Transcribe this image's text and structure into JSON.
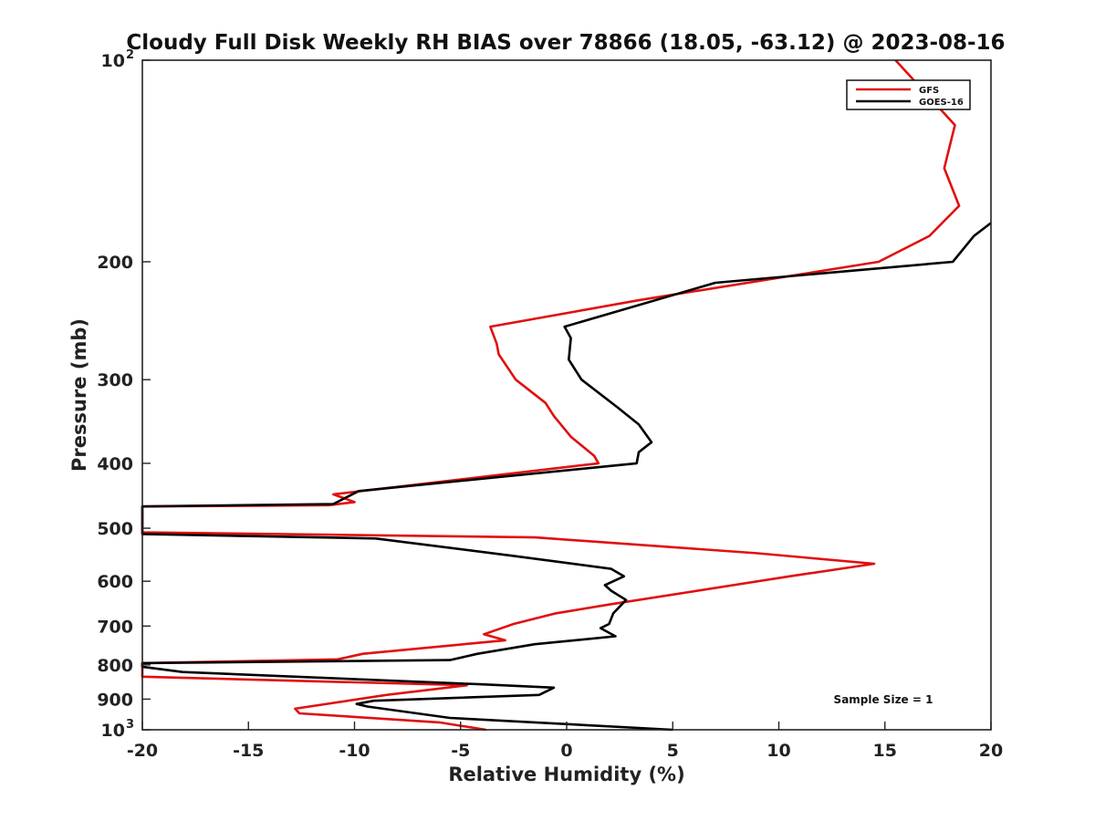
{
  "chart_data": {
    "type": "line",
    "title": "Cloudy Full Disk Weekly RH BIAS over 78866 (18.05, -63.12) @ 2023-08-16",
    "xlabel": "Relative Humidity (%)",
    "ylabel": "Pressure (mb)",
    "xlim": [
      -20,
      20
    ],
    "ylim": [
      100,
      1000
    ],
    "yscale": "log",
    "y_reversed": true,
    "x_ticks": [
      -20,
      -15,
      -10,
      -5,
      0,
      5,
      10,
      15,
      20
    ],
    "x_tick_labels": [
      "-20",
      "-15",
      "-10",
      "-5",
      "0",
      "5",
      "10",
      "15",
      "20"
    ],
    "y_ticks": [
      {
        "value": 100,
        "label": "10",
        "exp": "2"
      },
      {
        "value": 200,
        "label": "200",
        "exp": ""
      },
      {
        "value": 300,
        "label": "300",
        "exp": ""
      },
      {
        "value": 400,
        "label": "400",
        "exp": ""
      },
      {
        "value": 500,
        "label": "500",
        "exp": ""
      },
      {
        "value": 600,
        "label": "600",
        "exp": ""
      },
      {
        "value": 700,
        "label": "700",
        "exp": ""
      },
      {
        "value": 800,
        "label": "800",
        "exp": ""
      },
      {
        "value": 900,
        "label": "900",
        "exp": ""
      },
      {
        "value": 1000,
        "label": "10",
        "exp": "3"
      }
    ],
    "legend_position": "top-right",
    "series": [
      {
        "name": "GFS",
        "color": "#e01010",
        "points": [
          [
            15.5,
            100
          ],
          [
            18.3,
            125
          ],
          [
            17.8,
            145
          ],
          [
            18.5,
            165
          ],
          [
            17.1,
            183
          ],
          [
            14.7,
            200
          ],
          [
            3.5,
            228
          ],
          [
            -3.6,
            250
          ],
          [
            -3.3,
            265
          ],
          [
            -3.2,
            275
          ],
          [
            -2.4,
            300
          ],
          [
            -1.0,
            325
          ],
          [
            -0.6,
            340
          ],
          [
            0.2,
            365
          ],
          [
            1.3,
            390
          ],
          [
            1.5,
            400
          ],
          [
            -11.0,
            445
          ],
          [
            -10.0,
            457
          ],
          [
            -11.2,
            462
          ],
          [
            -20.0,
            464
          ],
          [
            -20.0,
            507
          ],
          [
            -1.5,
            516
          ],
          [
            9.0,
            545
          ],
          [
            14.5,
            565
          ],
          [
            10.5,
            590
          ],
          [
            2.0,
            650
          ],
          [
            -0.5,
            670
          ],
          [
            -2.5,
            695
          ],
          [
            -3.9,
            720
          ],
          [
            -2.9,
            735
          ],
          [
            -9.6,
            770
          ],
          [
            -10.8,
            785
          ],
          [
            -20.0,
            795
          ],
          [
            -20.0,
            833
          ],
          [
            -4.7,
            858
          ],
          [
            -8.5,
            887
          ],
          [
            -12.8,
            930
          ],
          [
            -12.6,
            945
          ],
          [
            -6.0,
            975
          ],
          [
            -3.8,
            1000
          ]
        ]
      },
      {
        "name": "GOES-16",
        "color": "#000000",
        "points": [
          [
            20.0,
            175
          ],
          [
            19.2,
            183
          ],
          [
            18.2,
            200
          ],
          [
            7.0,
            215
          ],
          [
            -0.1,
            250
          ],
          [
            0.2,
            260
          ],
          [
            0.1,
            280
          ],
          [
            0.7,
            300
          ],
          [
            2.4,
            330
          ],
          [
            3.4,
            350
          ],
          [
            4.0,
            372
          ],
          [
            3.4,
            385
          ],
          [
            3.3,
            400
          ],
          [
            -9.8,
            440
          ],
          [
            -11.0,
            460
          ],
          [
            -20.0,
            464
          ],
          [
            -20.0,
            510
          ],
          [
            -9.0,
            518
          ],
          [
            -2.5,
            550
          ],
          [
            2.1,
            575
          ],
          [
            2.7,
            590
          ],
          [
            1.8,
            608
          ],
          [
            2.1,
            620
          ],
          [
            2.8,
            640
          ],
          [
            2.2,
            670
          ],
          [
            2.0,
            695
          ],
          [
            1.6,
            705
          ],
          [
            2.3,
            725
          ],
          [
            -1.5,
            745
          ],
          [
            -4.2,
            770
          ],
          [
            -5.5,
            787
          ],
          [
            -20.0,
            795
          ],
          [
            -20.0,
            805
          ],
          [
            -18.1,
            820
          ],
          [
            -4.1,
            855
          ],
          [
            -0.6,
            865
          ],
          [
            -1.3,
            887
          ],
          [
            -9.1,
            905
          ],
          [
            -9.9,
            915
          ],
          [
            -9.4,
            923
          ],
          [
            -5.5,
            960
          ],
          [
            5.0,
            1000
          ]
        ]
      }
    ],
    "annotations": [
      "Sample Size = 1"
    ]
  }
}
